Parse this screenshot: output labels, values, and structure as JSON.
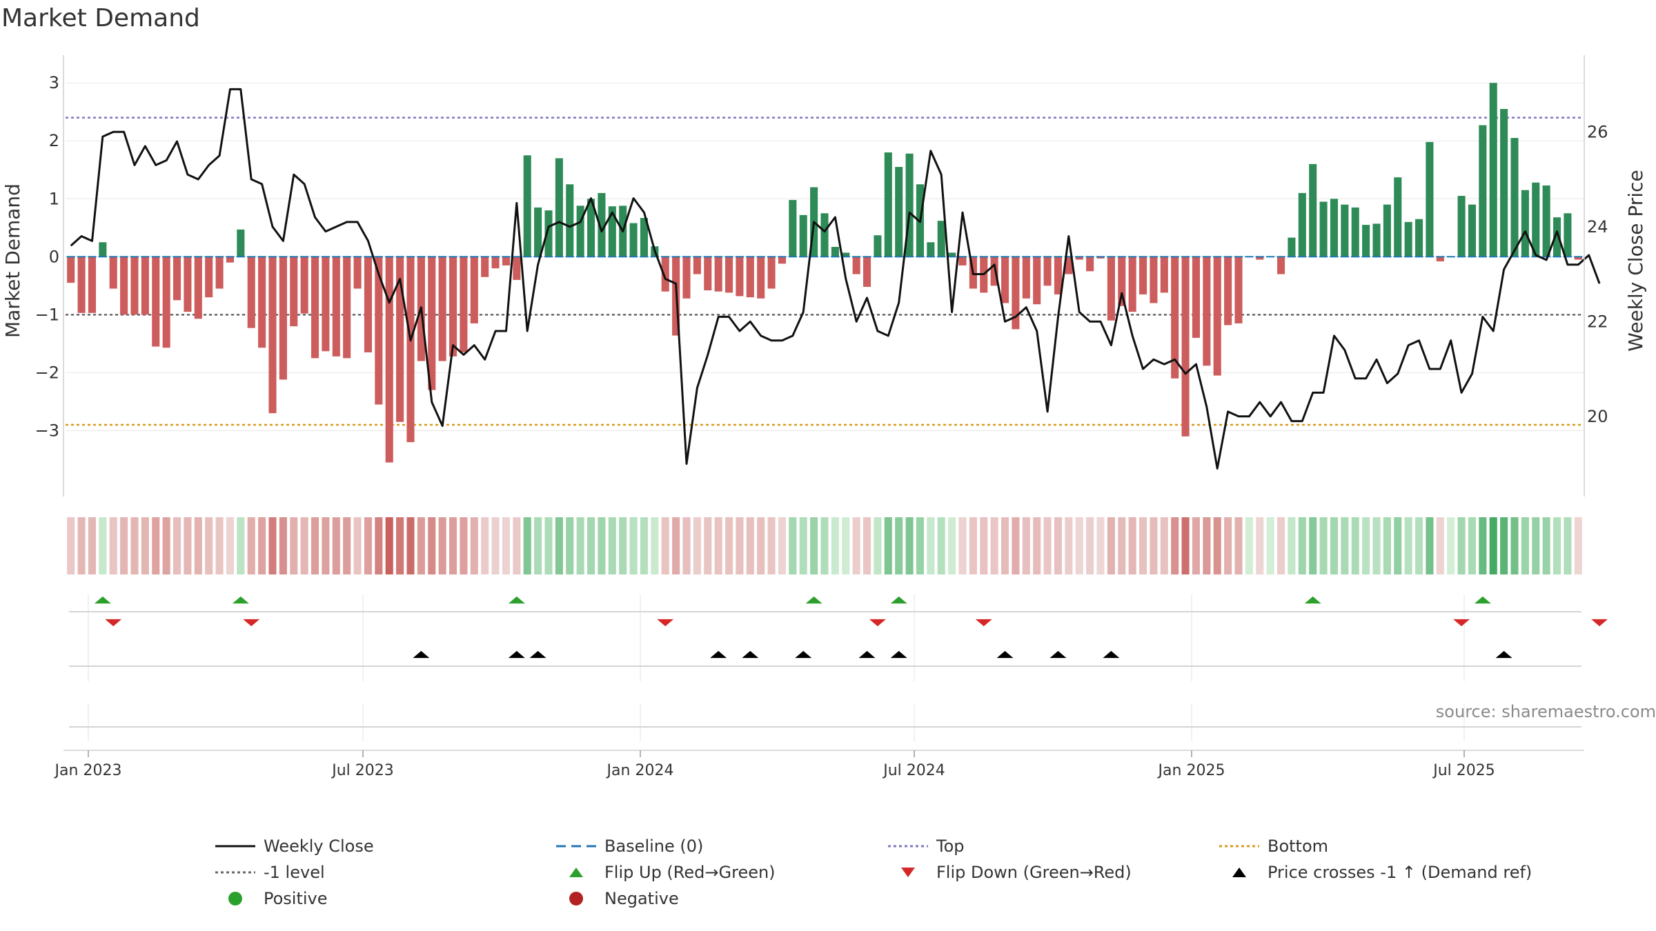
{
  "title": "Market Demand",
  "source": "source: sharemaestro.com",
  "colors": {
    "positive": "#2e8b57",
    "negative": "#cd5c5c",
    "flip_up": "#2ca02c",
    "flip_down": "#d62728",
    "price": "#111111",
    "top": "#7b78c2",
    "bottom": "#d99a1c",
    "level": "#666666",
    "baseline": "#1f77b4"
  },
  "chart_data": {
    "type": "bar",
    "title": "Market Demand",
    "ylabel": "Market Demand",
    "ylabel_right": "Weekly Close Price",
    "ylim": [
      -3.9,
      3.3
    ],
    "ylim_right": [
      18.6,
      27.4
    ],
    "yticks": [
      "3",
      "2",
      "1",
      "0",
      "−1",
      "−2",
      "−3"
    ],
    "yticks_right": [
      "26",
      "24",
      "22",
      "20"
    ],
    "x_ticks": [
      "Jan 2023",
      "Jul 2023",
      "Jan 2024",
      "Jul 2024",
      "Jan 2025",
      "Jul 2025"
    ],
    "reference_lines": {
      "top": 2.4,
      "level_minus_1": -1,
      "bottom": -2.9,
      "baseline": 0
    },
    "demand": [
      -0.45,
      -0.97,
      -0.97,
      0.25,
      -0.55,
      -1.0,
      -1.0,
      -1.0,
      -1.55,
      -1.57,
      -0.75,
      -0.95,
      -1.07,
      -0.7,
      -0.55,
      -0.1,
      0.47,
      -1.23,
      -1.57,
      -2.7,
      -2.12,
      -1.2,
      -0.98,
      -1.75,
      -1.63,
      -1.72,
      -1.75,
      -0.55,
      -1.65,
      -2.55,
      -3.55,
      -2.85,
      -3.2,
      -1.8,
      -2.3,
      -1.8,
      -1.72,
      -1.65,
      -1.15,
      -0.35,
      -0.2,
      -0.15,
      -0.4,
      1.75,
      0.85,
      0.8,
      1.7,
      1.25,
      0.88,
      1.0,
      1.1,
      0.87,
      0.88,
      0.58,
      0.67,
      0.18,
      -0.6,
      -1.36,
      -0.72,
      -0.3,
      -0.58,
      -0.6,
      -0.62,
      -0.68,
      -0.7,
      -0.72,
      -0.55,
      -0.12,
      0.98,
      0.72,
      1.2,
      0.75,
      0.17,
      0.07,
      -0.3,
      -0.52,
      0.37,
      1.8,
      1.55,
      1.78,
      1.25,
      0.25,
      0.62,
      0.07,
      -0.15,
      -0.55,
      -0.62,
      -0.5,
      -0.8,
      -1.25,
      -0.72,
      -0.82,
      -0.5,
      -0.65,
      -0.3,
      -0.05,
      -0.25,
      -0.03,
      -1.1,
      -0.85,
      -0.95,
      -0.65,
      -0.8,
      -0.62,
      -2.1,
      -3.1,
      -1.4,
      -1.88,
      -2.05,
      -1.18,
      -1.15,
      0,
      -0.05,
      0,
      -0.3,
      0.33,
      1.1,
      1.6,
      0.95,
      1.0,
      0.9,
      0.85,
      0.55,
      0.57,
      0.9,
      1.37,
      0.6,
      0.65,
      1.98,
      -0.08,
      0,
      1.05,
      0.9,
      2.27,
      3.0,
      2.55,
      2.05,
      1.15,
      1.28,
      1.23,
      0.68,
      0.75,
      -0.05
    ],
    "price": [
      23.6,
      23.8,
      23.7,
      25.9,
      26.0,
      26.0,
      25.3,
      25.7,
      25.3,
      25.4,
      25.8,
      25.1,
      25.0,
      25.3,
      25.5,
      26.9,
      26.9,
      25.0,
      24.9,
      24.0,
      23.7,
      25.1,
      24.9,
      24.2,
      23.9,
      24.0,
      24.1,
      24.1,
      23.7,
      23.0,
      22.4,
      22.9,
      21.6,
      22.3,
      20.3,
      19.8,
      21.5,
      21.3,
      21.5,
      21.2,
      21.8,
      21.8,
      24.5,
      21.8,
      23.2,
      24.0,
      24.1,
      24.0,
      24.1,
      24.6,
      23.9,
      24.3,
      23.9,
      24.6,
      24.3,
      23.5,
      22.9,
      22.8,
      19.0,
      20.6,
      21.3,
      22.1,
      22.1,
      21.8,
      22.0,
      21.7,
      21.6,
      21.6,
      21.7,
      22.2,
      24.1,
      23.9,
      24.2,
      22.9,
      22.0,
      22.5,
      21.8,
      21.7,
      22.4,
      24.3,
      24.1,
      25.6,
      25.1,
      22.2,
      24.3,
      23.0,
      23.0,
      23.2,
      22.0,
      22.1,
      22.3,
      21.8,
      20.1,
      22.1,
      23.8,
      22.2,
      22.0,
      22.0,
      21.5,
      22.6,
      21.7,
      21.0,
      21.2,
      21.1,
      21.2,
      20.9,
      21.1,
      20.2,
      18.9,
      20.1,
      20.0,
      20.0,
      20.3,
      20.0,
      20.3,
      19.9,
      19.9,
      20.5,
      20.5,
      21.7,
      21.4,
      20.8,
      20.8,
      21.2,
      20.7,
      20.9,
      21.5,
      21.6,
      21.0,
      21.0,
      21.6,
      20.5,
      20.9,
      22.1,
      21.8,
      23.1,
      23.5,
      23.9,
      23.4,
      23.3,
      23.9,
      23.2,
      23.2,
      23.4,
      22.8
    ]
  },
  "flip_up_weeks": [
    3,
    16,
    42,
    70,
    78,
    117,
    133
  ],
  "flip_down_weeks": [
    4,
    17,
    56,
    76,
    86,
    131,
    144
  ],
  "price_cross_weeks": [
    33,
    42,
    44,
    61,
    64,
    69,
    75,
    78,
    88,
    93,
    98,
    135
  ],
  "legend": [
    {
      "label": "Weekly Close",
      "icon": "solid-line"
    },
    {
      "label": "Baseline (0)",
      "icon": "dashed-line"
    },
    {
      "label": "Top",
      "icon": "dotted-line"
    },
    {
      "label": "Bottom",
      "icon": "dotted-line"
    },
    {
      "label": "-1 level",
      "icon": "dotted-line"
    },
    {
      "label": "Flip Up (Red→Green)",
      "icon": "triangle-up"
    },
    {
      "label": "Flip Down (Green→Red)",
      "icon": "triangle-down"
    },
    {
      "label": "Price crosses -1 ↑ (Demand ref)",
      "icon": "triangle-up"
    },
    {
      "label": "Positive",
      "icon": "circle"
    },
    {
      "label": "Negative",
      "icon": "circle"
    }
  ]
}
